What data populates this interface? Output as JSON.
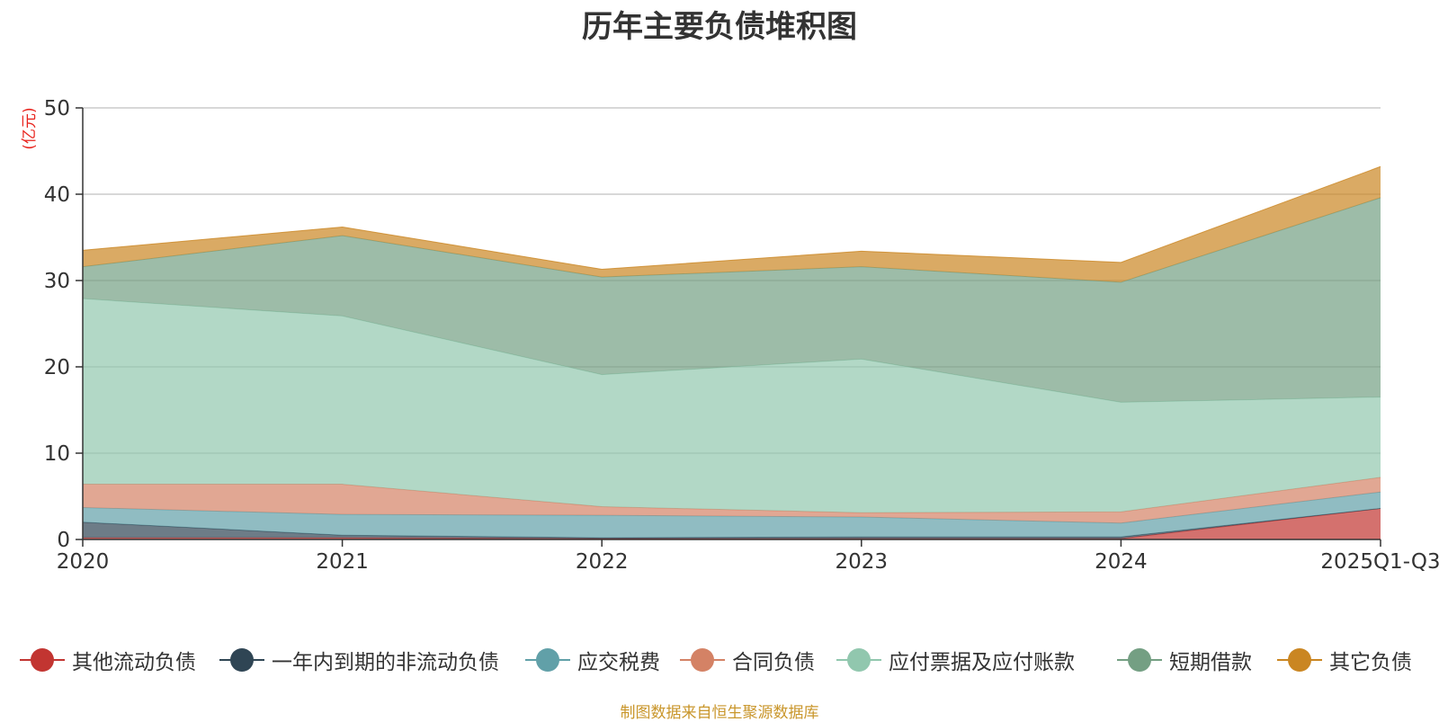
{
  "chart_data": {
    "type": "area",
    "stacked": true,
    "title": "历年主要负债堆积图",
    "ylabel": "(亿元)",
    "xlabel": "",
    "categories": [
      "2020",
      "2021",
      "2022",
      "2023",
      "2024",
      "2025Q1-Q3"
    ],
    "y_ticks": [
      "0",
      "10",
      "20",
      "30",
      "40",
      "50"
    ],
    "ylim": [
      0,
      50
    ],
    "grid": true,
    "legend_position": "bottom",
    "series": [
      {
        "name": "其他流动负债",
        "color": "#c23531",
        "values": [
          0.2,
          0.2,
          0.1,
          0.1,
          0.1,
          3.6
        ]
      },
      {
        "name": "一年内到期的非流动负债",
        "color": "#2f4554",
        "values": [
          1.8,
          0.3,
          0.1,
          0.2,
          0.2,
          0.0
        ]
      },
      {
        "name": "应交税费",
        "color": "#61a0a8",
        "values": [
          1.7,
          2.4,
          2.6,
          2.3,
          1.6,
          1.9
        ]
      },
      {
        "name": "合同负债",
        "color": "#d48265",
        "values": [
          2.7,
          3.5,
          1.0,
          0.5,
          1.3,
          1.7
        ]
      },
      {
        "name": "应付票据及应付账款",
        "color": "#91c7ae",
        "values": [
          21.5,
          19.5,
          15.3,
          17.8,
          12.7,
          9.3
        ]
      },
      {
        "name": "短期借款",
        "color": "#749f83",
        "values": [
          3.7,
          9.3,
          11.3,
          10.7,
          13.9,
          23.1
        ]
      },
      {
        "name": "其它负债",
        "color": "#ca8622",
        "values": [
          1.9,
          1.0,
          0.9,
          1.8,
          2.3,
          3.6
        ]
      }
    ]
  },
  "source_note": "制图数据来自恒生聚源数据库"
}
